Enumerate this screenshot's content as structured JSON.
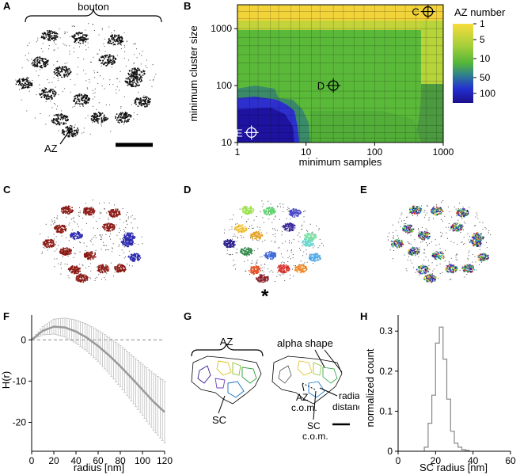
{
  "panels": {
    "A": "A",
    "B": "B",
    "C": "C",
    "D": "D",
    "E": "E",
    "F": "F",
    "G": "G",
    "H": "H"
  },
  "panel_a": {
    "bouton_label": "bouton",
    "az_label": "AZ"
  },
  "panel_b": {
    "xlabel": "minimum samples",
    "ylabel": "minimum cluster size",
    "colorbar_title": "AZ number",
    "colorbar_ticks": [
      "1",
      "5",
      "10",
      "50",
      "100"
    ],
    "x_ticks": [
      "1",
      "10",
      "100",
      "1000"
    ],
    "y_ticks": [
      "1000",
      "100",
      "10"
    ],
    "markers": [
      {
        "label": "C",
        "min_samples": 600,
        "min_cluster_size": 2000
      },
      {
        "label": "D",
        "min_samples": 25,
        "min_cluster_size": 100
      },
      {
        "label": "E",
        "min_samples": 1.6,
        "min_cluster_size": 15
      }
    ],
    "colors": {
      "yellow": "#f2d33a",
      "green": "#5dbb35",
      "blue": "#2e33c9",
      "deep": "#1a0f8c"
    }
  },
  "panel_d": {
    "asterisk": "*"
  },
  "panel_g": {
    "az_label": "AZ",
    "alpha_shape": "alpha shape",
    "sc_label": "SC",
    "az_com_1": "AZ",
    "az_com_2": "c.o.m.",
    "sc_com_1": "SC",
    "sc_com_2": "c.o.m.",
    "radial_1": "radial",
    "radial_2": "distance"
  },
  "chart_data": [
    {
      "type": "line",
      "panel": "F",
      "xlabel": "radius [nm]",
      "ylabel": "H(r)",
      "xlim": [
        0,
        120
      ],
      "ylim": [
        -27,
        6
      ],
      "x_ticks": [
        "0",
        "20",
        "40",
        "60",
        "80",
        "100",
        "120"
      ],
      "y_ticks": [
        "0",
        "-10",
        "-20"
      ],
      "x": [
        0,
        10,
        20,
        30,
        40,
        50,
        60,
        70,
        80,
        90,
        100,
        110,
        120
      ],
      "mean": [
        0,
        2.2,
        3.2,
        3.0,
        2.0,
        0.5,
        -1.5,
        -3.8,
        -6.4,
        -9.2,
        -12.1,
        -15.0,
        -17.5
      ],
      "error": [
        0,
        1.0,
        1.8,
        2.3,
        2.8,
        3.3,
        3.8,
        4.4,
        5.0,
        5.6,
        6.2,
        6.9,
        7.5
      ],
      "line_color": "#999999"
    },
    {
      "type": "histogram",
      "panel": "H",
      "xlabel": "SC radius [nm]",
      "ylabel": "normalized count",
      "xlim": [
        0,
        60
      ],
      "ylim": [
        0,
        0.34
      ],
      "x_ticks": [
        "0",
        "20",
        "40",
        "60"
      ],
      "y_ticks": [
        "0",
        "0.1",
        "0.2",
        "0.3"
      ],
      "bin_edges": [
        14,
        16,
        18,
        20,
        22,
        24,
        26,
        28,
        30,
        32,
        34,
        36,
        38
      ],
      "values": [
        0.01,
        0.07,
        0.14,
        0.27,
        0.31,
        0.23,
        0.13,
        0.05,
        0.02,
        0.01,
        0.004,
        0.002
      ]
    }
  ]
}
